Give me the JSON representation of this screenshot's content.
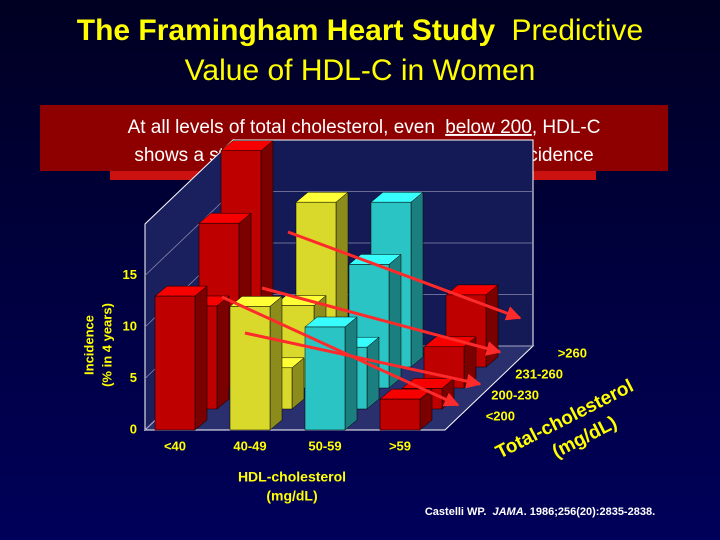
{
  "chart_data": {
    "type": "bar3d",
    "title": {
      "bold": "The Framingham Heart Study",
      "rest": [
        "Predictive",
        "Value of HDL-C in Women"
      ]
    },
    "callout": [
      "At all levels of total cholesterol, even",
      "below 200",
      ", HDL-C",
      "shows a strong inverse correlation with CHD incidence"
    ],
    "y_label": [
      "Incidence",
      "(% in 4 years)"
    ],
    "x_label": [
      "HDL-cholesterol",
      "(mg/dL)"
    ],
    "depth_label": [
      "Total-cholesterol",
      "(mg/dL)"
    ],
    "citation": [
      "Castelli WP.",
      "JAMA",
      ". 1986;256(20):2835-2838."
    ],
    "categories": [
      "<40",
      "40-49",
      "50-59",
      ">59"
    ],
    "colors": [
      "#e00000",
      "#ffff33",
      "#33e6e6",
      "#e00000"
    ],
    "series": [
      {
        "name": "<200",
        "values": [
          13,
          12,
          10,
          3
        ]
      },
      {
        "name": "200-230",
        "values": [
          10,
          4,
          6,
          2
        ]
      },
      {
        "name": "231-260",
        "values": [
          16,
          8,
          12,
          4
        ]
      },
      {
        "name": ">260",
        "values": [
          21,
          16,
          16,
          7
        ]
      }
    ],
    "ylim": [
      0,
      20
    ],
    "yticks": [
      0,
      5,
      10,
      15
    ],
    "grid": true
  }
}
